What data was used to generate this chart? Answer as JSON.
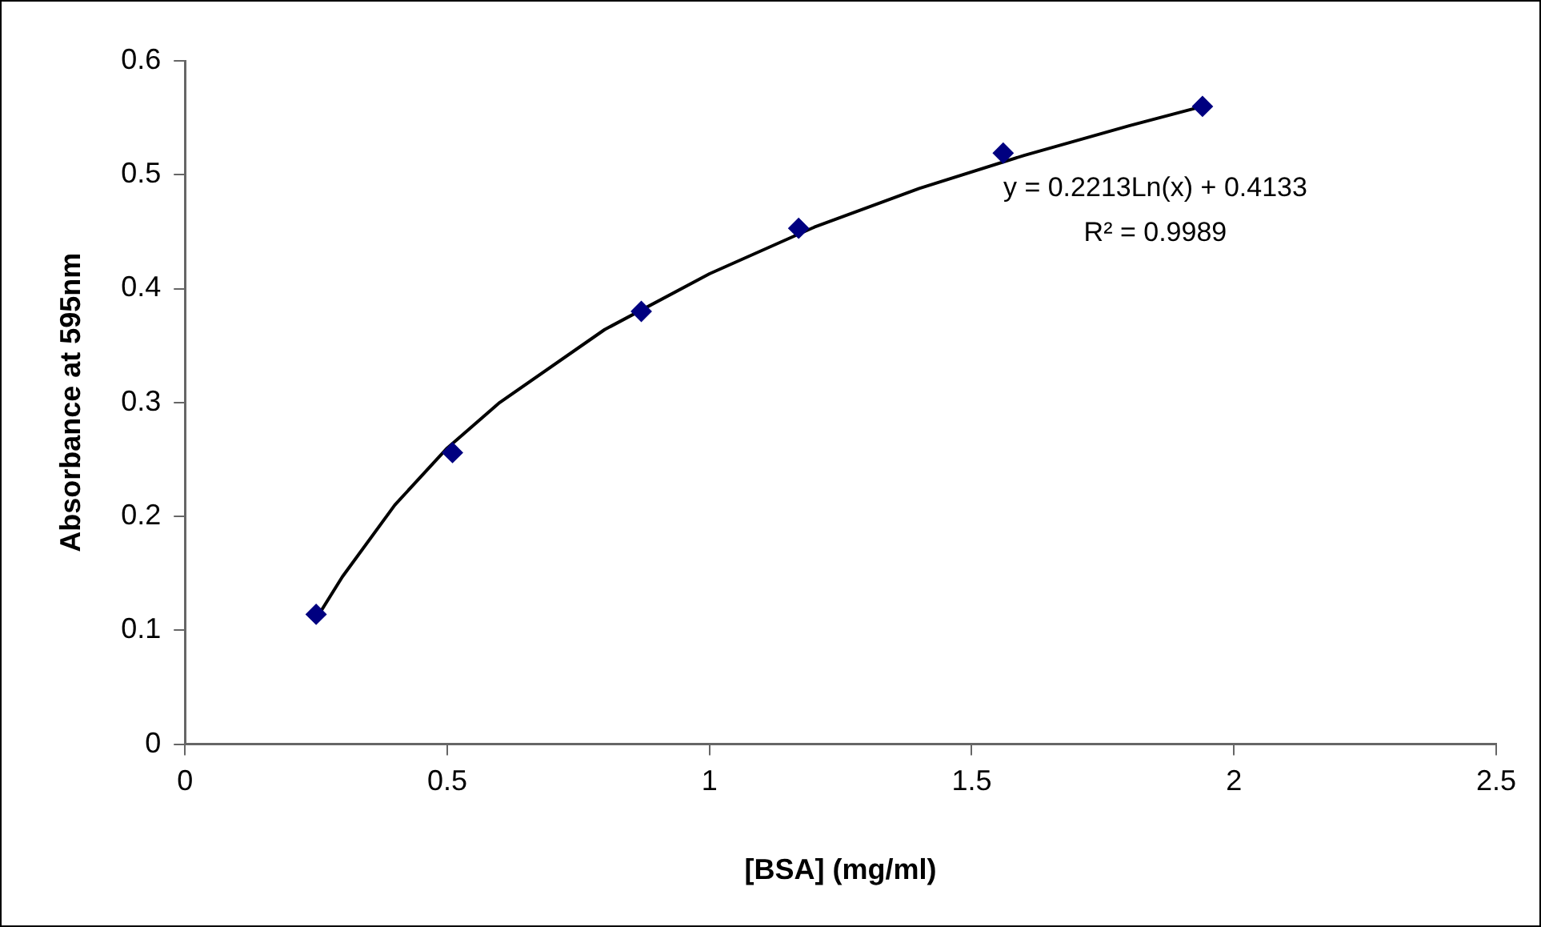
{
  "chart_data": {
    "type": "scatter",
    "xlabel": "[BSA] (mg/ml)",
    "ylabel": "Absorbance at 595nm",
    "x": [
      0.25,
      0.51,
      0.87,
      1.17,
      1.56,
      1.94
    ],
    "series": [
      {
        "color": "#000080",
        "values": [
          0.114,
          0.256,
          0.38,
          0.453,
          0.519,
          0.56
        ],
        "marker": "diamond"
      },
      {
        "type": "line",
        "color": "#000000",
        "x": [
          0.25,
          0.3,
          0.4,
          0.5,
          0.6,
          0.8,
          1.0,
          1.2,
          1.4,
          1.6,
          1.8,
          1.94
        ],
        "values": [
          0.11,
          0.147,
          0.21,
          0.26,
          0.3,
          0.364,
          0.413,
          0.454,
          0.488,
          0.517,
          0.543,
          0.56
        ],
        "marker": "none",
        "line_style": "solid"
      }
    ],
    "xlim": [
      0,
      2.5
    ],
    "xticks": [
      0,
      0.5,
      1,
      1.5,
      2,
      2.5
    ],
    "ylim": [
      0,
      0.6
    ],
    "yticks": [
      0,
      0.1,
      0.2,
      0.3,
      0.4,
      0.5,
      0.6
    ],
    "grid": false,
    "legend": false,
    "annotations": [
      "y = 0.2213Ln(x) + 0.4133",
      "R² = 0.9989"
    ]
  }
}
